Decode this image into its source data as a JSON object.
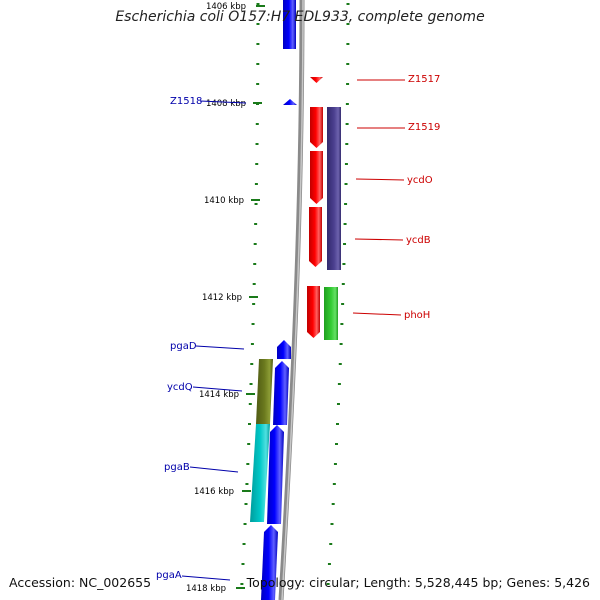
{
  "title": "Escherichia coli O157:H7 EDL933, complete genome",
  "footer": {
    "accession": "Accession: NC_002655",
    "summary": "Topology: circular; Length: 5,528,445 bp; Genes: 5,426"
  },
  "colors": {
    "forward": "#0000ff",
    "reverse": "#ff0000",
    "rna_strand": "#4b3f8f",
    "green_feature": "#33cc33",
    "olive_feature": "#6b7a1e",
    "cyan_feature": "#00c8c8",
    "tick": "#1a7a1a",
    "backbone": "#8a8a8a",
    "forward_label": "#0000aa",
    "reverse_label": "#cc0000"
  },
  "ticks": [
    {
      "label": "1406 kbp"
    },
    {
      "label": "1408 kbp"
    },
    {
      "label": "1410 kbp"
    },
    {
      "label": "1412 kbp"
    },
    {
      "label": "1414 kbp"
    },
    {
      "label": "1416 kbp"
    },
    {
      "label": "1418 kbp"
    }
  ],
  "reverse_genes": [
    {
      "name": "Z1517"
    },
    {
      "name": "Z1519"
    },
    {
      "name": "ycdO"
    },
    {
      "name": "ycdB"
    },
    {
      "name": "phoH"
    }
  ],
  "forward_genes": [
    {
      "name": "Z1518"
    },
    {
      "name": "pgaD"
    },
    {
      "name": "ycdQ"
    },
    {
      "name": "pgaB"
    },
    {
      "name": "pgaA"
    }
  ]
}
